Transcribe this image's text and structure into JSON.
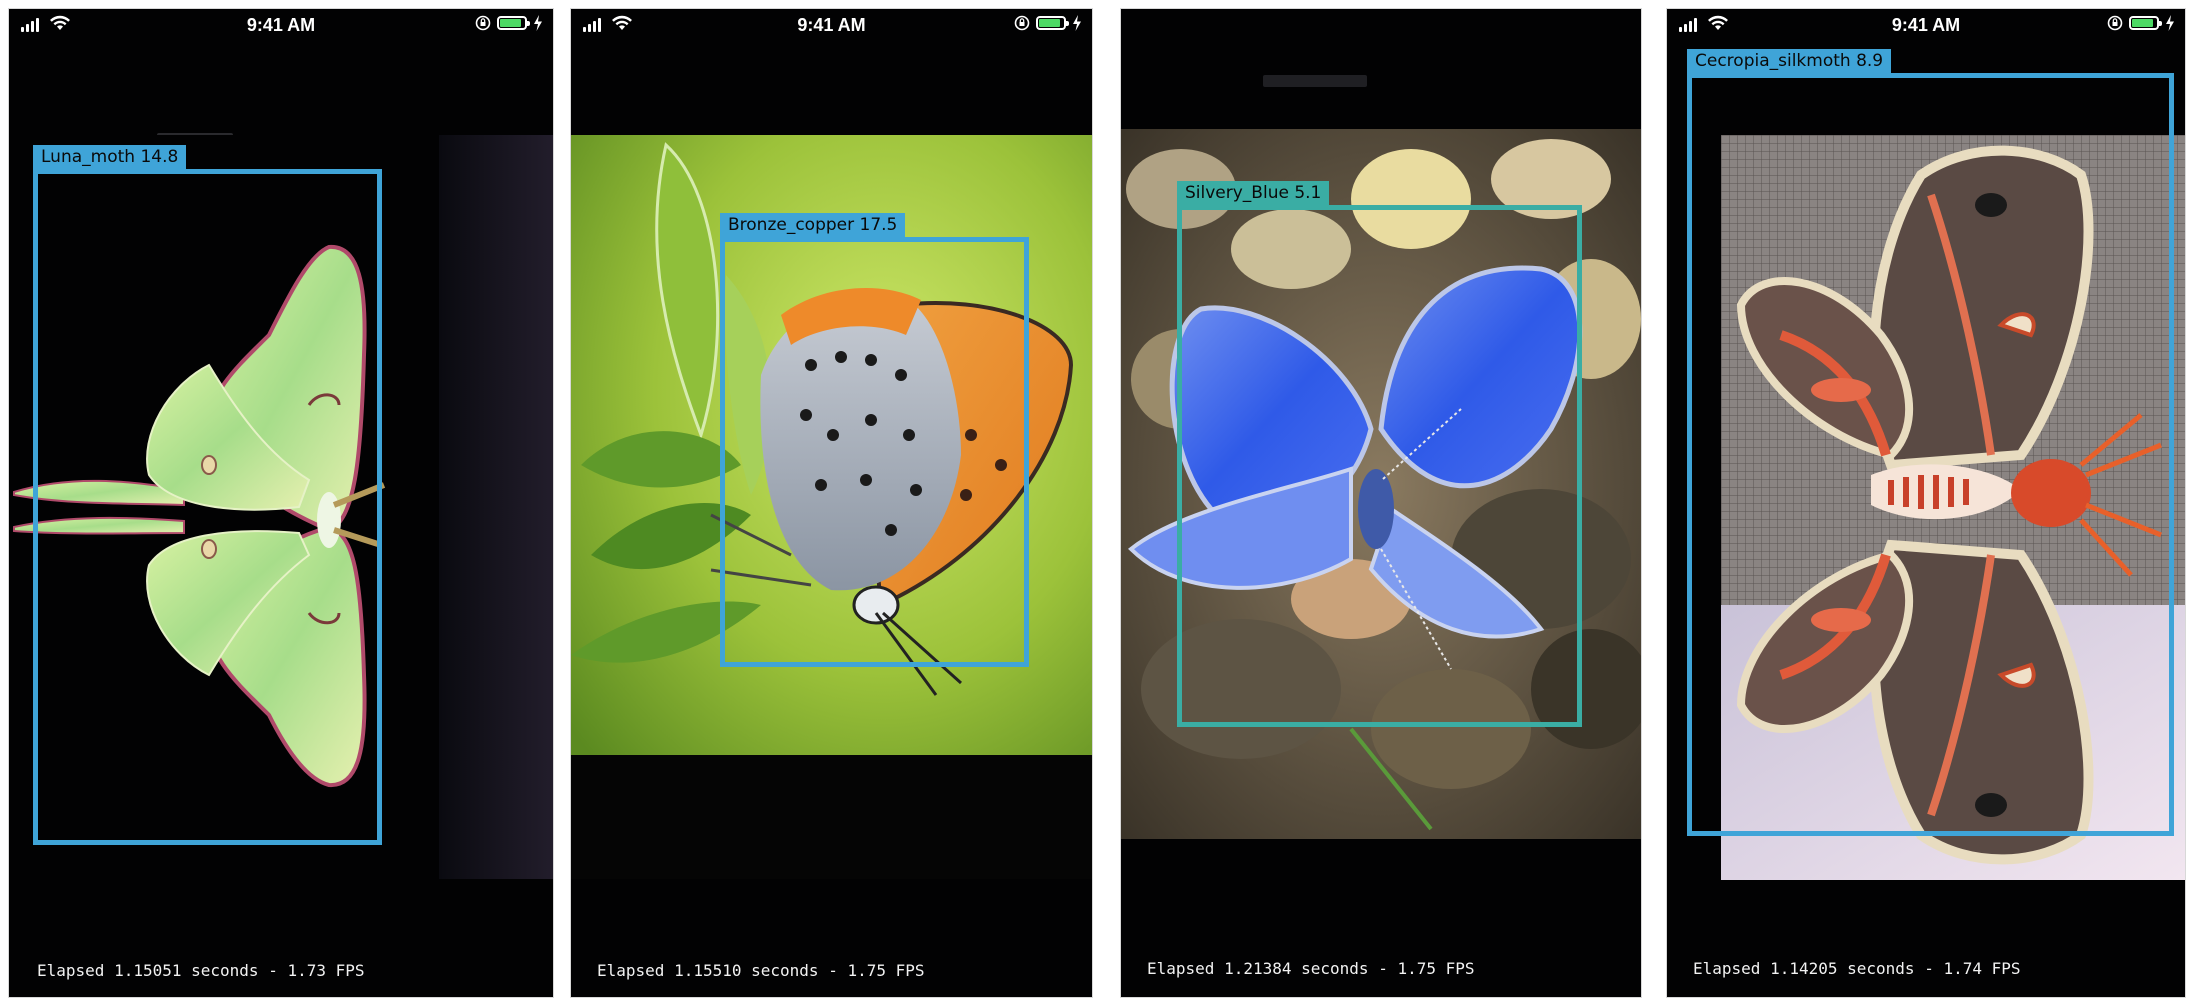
{
  "panels": [
    {
      "status": {
        "time": "9:41 AM"
      },
      "detection": {
        "label": "Luna_moth 14.8",
        "color": "#3fa4d8"
      },
      "elapsed": "Elapsed 1.15051 seconds - 1.73 FPS"
    },
    {
      "status": {
        "time": "9:41 AM"
      },
      "detection": {
        "label": "Bronze_copper 17.5",
        "color": "#3fa4d8"
      },
      "elapsed": "Elapsed 1.15510 seconds - 1.75 FPS"
    },
    {
      "status": {
        "time": ""
      },
      "detection": {
        "label": "Silvery_Blue 5.1",
        "color": "#3aada4"
      },
      "elapsed": "Elapsed 1.21384 seconds - 1.75 FPS"
    },
    {
      "status": {
        "time": "9:41 AM"
      },
      "detection": {
        "label": "Cecropia_silkmoth 8.9",
        "color": "#3fa4d8"
      },
      "elapsed": "Elapsed 1.14205 seconds - 1.74 FPS"
    }
  ]
}
